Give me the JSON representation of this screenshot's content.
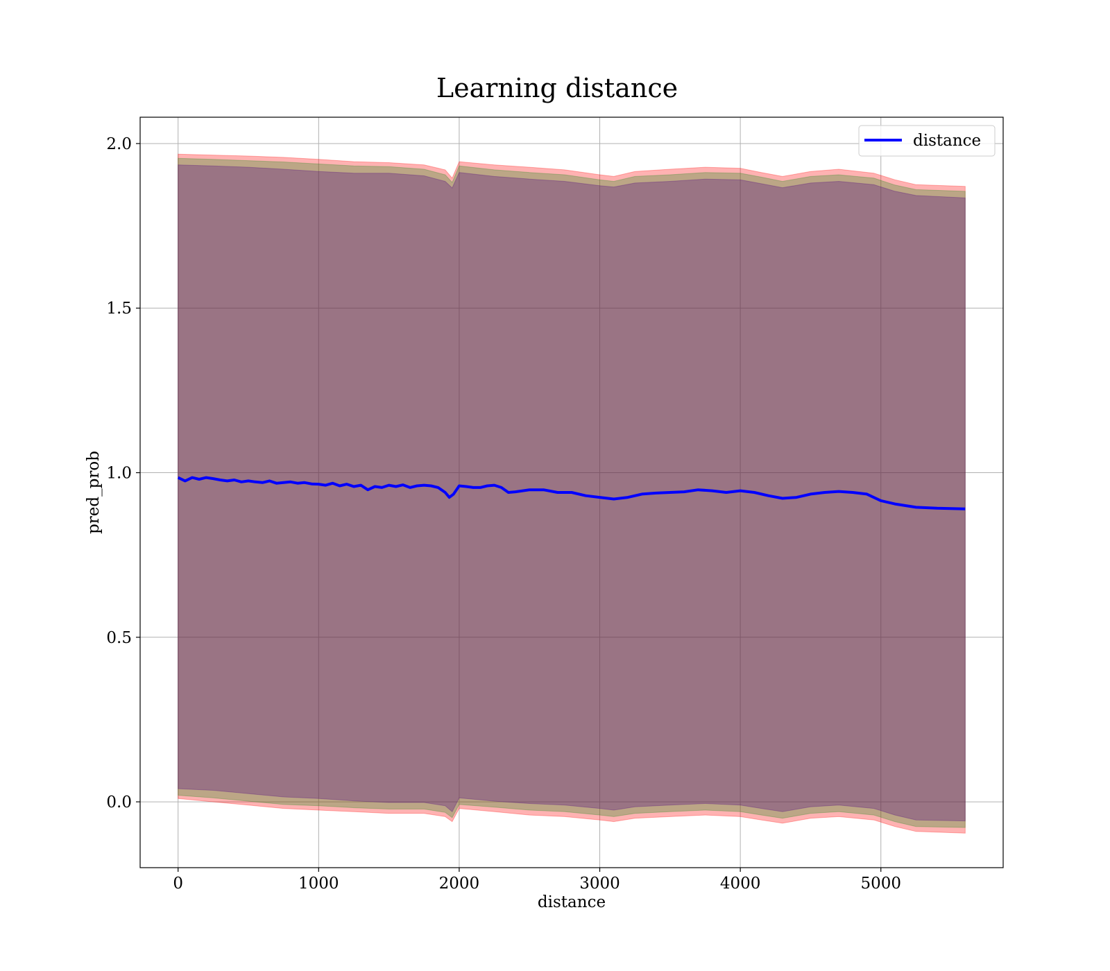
{
  "chart_data": {
    "type": "line",
    "title": "Learning distance",
    "xlabel": "distance",
    "ylabel": "pred_prob",
    "xlim": [
      -270,
      5870
    ],
    "ylim": [
      -0.2,
      2.08
    ],
    "xticks": [
      0,
      1000,
      2000,
      3000,
      4000,
      5000
    ],
    "xtick_labels": [
      "0",
      "1000",
      "2000",
      "3000",
      "4000",
      "5000"
    ],
    "yticks": [
      0.0,
      0.5,
      1.0,
      1.5,
      2.0
    ],
    "ytick_labels": [
      "0.0",
      "0.5",
      "1.0",
      "1.5",
      "2.0"
    ],
    "grid": true,
    "legend_position": "upper-right",
    "series": [
      {
        "name": "distance",
        "color": "#0000ff",
        "x": [
          0,
          50,
          100,
          150,
          200,
          250,
          300,
          350,
          400,
          450,
          500,
          550,
          600,
          650,
          700,
          750,
          800,
          850,
          900,
          950,
          1000,
          1050,
          1100,
          1150,
          1200,
          1250,
          1300,
          1350,
          1400,
          1450,
          1500,
          1550,
          1600,
          1650,
          1700,
          1750,
          1800,
          1850,
          1900,
          1930,
          1960,
          2000,
          2050,
          2100,
          2150,
          2200,
          2250,
          2300,
          2350,
          2400,
          2500,
          2600,
          2700,
          2800,
          2900,
          3000,
          3100,
          3200,
          3300,
          3400,
          3500,
          3600,
          3700,
          3800,
          3900,
          4000,
          4100,
          4200,
          4300,
          4400,
          4500,
          4600,
          4700,
          4800,
          4900,
          5000,
          5100,
          5250,
          5400,
          5600
        ],
        "y": [
          0.985,
          0.975,
          0.985,
          0.98,
          0.985,
          0.982,
          0.978,
          0.975,
          0.978,
          0.972,
          0.975,
          0.972,
          0.97,
          0.975,
          0.968,
          0.97,
          0.972,
          0.968,
          0.97,
          0.966,
          0.965,
          0.962,
          0.968,
          0.96,
          0.965,
          0.958,
          0.962,
          0.948,
          0.958,
          0.955,
          0.962,
          0.958,
          0.963,
          0.955,
          0.96,
          0.962,
          0.96,
          0.955,
          0.94,
          0.925,
          0.935,
          0.96,
          0.958,
          0.955,
          0.955,
          0.96,
          0.962,
          0.955,
          0.94,
          0.942,
          0.948,
          0.948,
          0.94,
          0.94,
          0.93,
          0.925,
          0.92,
          0.925,
          0.935,
          0.938,
          0.94,
          0.942,
          0.948,
          0.945,
          0.94,
          0.945,
          0.94,
          0.93,
          0.922,
          0.925,
          0.935,
          0.94,
          0.943,
          0.94,
          0.935,
          0.915,
          0.905,
          0.895,
          0.892,
          0.89
        ]
      }
    ],
    "bands": [
      {
        "color": "#ff0000",
        "opacity": 0.3,
        "x": [
          0,
          250,
          500,
          750,
          1000,
          1250,
          1500,
          1750,
          1900,
          1950,
          2000,
          2250,
          2500,
          2750,
          3000,
          3100,
          3250,
          3500,
          3750,
          4000,
          4150,
          4300,
          4500,
          4700,
          4950,
          5100,
          5250,
          5600
        ],
        "upper": [
          1.968,
          1.965,
          1.962,
          1.958,
          1.952,
          1.945,
          1.942,
          1.935,
          1.92,
          1.895,
          1.945,
          1.935,
          1.928,
          1.92,
          1.905,
          1.9,
          1.915,
          1.922,
          1.928,
          1.925,
          1.912,
          1.9,
          1.915,
          1.922,
          1.91,
          1.89,
          1.875,
          1.87
        ],
        "lower": [
          0.01,
          0.0,
          -0.01,
          -0.02,
          -0.025,
          -0.03,
          -0.035,
          -0.035,
          -0.045,
          -0.06,
          -0.02,
          -0.03,
          -0.04,
          -0.045,
          -0.055,
          -0.06,
          -0.05,
          -0.045,
          -0.04,
          -0.045,
          -0.055,
          -0.065,
          -0.05,
          -0.045,
          -0.055,
          -0.075,
          -0.09,
          -0.095
        ]
      },
      {
        "color": "#228b22",
        "opacity": 0.3,
        "x": [
          0,
          250,
          500,
          750,
          1000,
          1250,
          1500,
          1750,
          1900,
          1950,
          2000,
          2250,
          2500,
          2750,
          3000,
          3100,
          3250,
          3500,
          3750,
          4000,
          4150,
          4300,
          4500,
          4700,
          4950,
          5100,
          5250,
          5600
        ],
        "upper": [
          1.955,
          1.952,
          1.948,
          1.944,
          1.938,
          1.932,
          1.93,
          1.922,
          1.905,
          1.882,
          1.932,
          1.92,
          1.912,
          1.905,
          1.89,
          1.885,
          1.9,
          1.905,
          1.912,
          1.91,
          1.898,
          1.885,
          1.9,
          1.905,
          1.895,
          1.874,
          1.86,
          1.855
        ],
        "lower": [
          0.02,
          0.012,
          0.002,
          -0.008,
          -0.012,
          -0.018,
          -0.022,
          -0.022,
          -0.032,
          -0.048,
          -0.008,
          -0.016,
          -0.025,
          -0.03,
          -0.04,
          -0.045,
          -0.035,
          -0.03,
          -0.025,
          -0.03,
          -0.04,
          -0.05,
          -0.035,
          -0.03,
          -0.04,
          -0.06,
          -0.075,
          -0.078
        ]
      },
      {
        "color": "#4b0082",
        "opacity": 0.3,
        "x": [
          0,
          250,
          500,
          750,
          1000,
          1250,
          1500,
          1750,
          1900,
          1950,
          2000,
          2250,
          2500,
          2750,
          3000,
          3100,
          3250,
          3500,
          3750,
          4000,
          4150,
          4300,
          4500,
          4700,
          4950,
          5100,
          5250,
          5600
        ],
        "upper": [
          1.935,
          1.932,
          1.928,
          1.922,
          1.915,
          1.91,
          1.91,
          1.902,
          1.885,
          1.865,
          1.912,
          1.9,
          1.892,
          1.885,
          1.872,
          1.868,
          1.88,
          1.885,
          1.892,
          1.89,
          1.878,
          1.866,
          1.88,
          1.885,
          1.875,
          1.855,
          1.842,
          1.835
        ],
        "lower": [
          0.04,
          0.035,
          0.025,
          0.015,
          0.01,
          0.003,
          -0.002,
          -0.002,
          -0.012,
          -0.03,
          0.012,
          0.002,
          -0.005,
          -0.01,
          -0.02,
          -0.025,
          -0.015,
          -0.01,
          -0.005,
          -0.01,
          -0.02,
          -0.03,
          -0.015,
          -0.01,
          -0.02,
          -0.04,
          -0.055,
          -0.058
        ]
      }
    ]
  }
}
